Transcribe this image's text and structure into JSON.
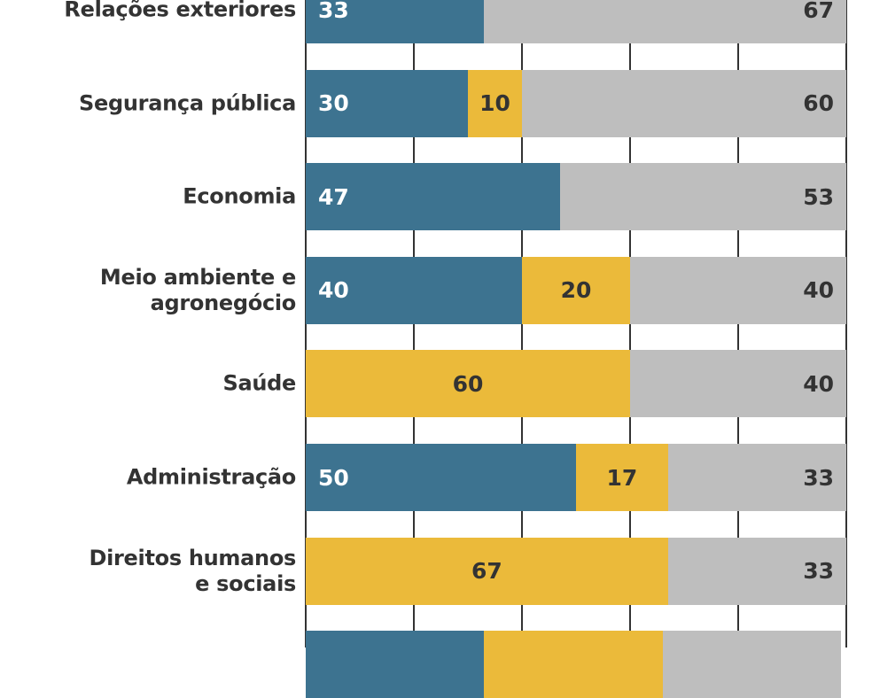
{
  "chart_data": {
    "type": "bar",
    "orientation": "horizontal",
    "stacked": true,
    "xlim": [
      0,
      100
    ],
    "grid": true,
    "categories": [
      "Relações exteriores",
      "Segurança pública",
      "Economia",
      "Meio ambiente e agronegócio",
      "Saúde",
      "Administração",
      "Direitos humanos e sociais",
      ""
    ],
    "series": [
      {
        "color": "#3d7390",
        "values": [
          33,
          30,
          47,
          40,
          0,
          50,
          0,
          33
        ]
      },
      {
        "color": "#ebba3a",
        "values": [
          0,
          10,
          0,
          20,
          60,
          17,
          67,
          33
        ]
      },
      {
        "color": "#bebebe",
        "values": [
          67,
          60,
          53,
          40,
          40,
          33,
          33,
          33
        ]
      }
    ],
    "label_lines": [
      [
        "Relações exteriores"
      ],
      [
        "Segurança pública"
      ],
      [
        "Economia"
      ],
      [
        "Meio ambiente e",
        "agronegócio"
      ],
      [
        "Saúde"
      ],
      [
        "Administração"
      ],
      [
        "Direitos humanos",
        "e sociais"
      ],
      []
    ],
    "show_value_labels": [
      true,
      true,
      true,
      true,
      true,
      true,
      true,
      false
    ]
  }
}
